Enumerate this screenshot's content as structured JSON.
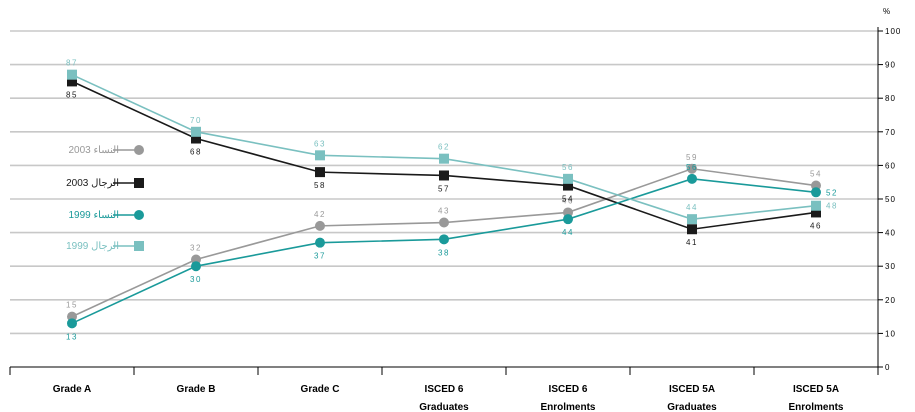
{
  "chart_data": {
    "type": "line",
    "categories": [
      [
        "Grade A"
      ],
      [
        "Grade B"
      ],
      [
        "Grade C"
      ],
      [
        "ISCED 6",
        "Graduates"
      ],
      [
        "ISCED 6",
        "Enrolments"
      ],
      [
        "ISCED 5A",
        "Graduates"
      ],
      [
        "ISCED 5A",
        "Enrolments"
      ]
    ],
    "ylabel": "%",
    "ylim": [
      0,
      100
    ],
    "yticks": [
      0,
      10,
      20,
      30,
      40,
      50,
      60,
      70,
      80,
      90,
      100
    ],
    "grid": true,
    "legend_position": "left",
    "series": [
      {
        "name": "النساء 2003",
        "color": "#999999",
        "marker": "circle",
        "values": [
          15,
          32,
          42,
          43,
          46,
          59,
          54
        ],
        "labels": [
          "15",
          "32",
          "42",
          "43",
          "46",
          "59",
          "54"
        ]
      },
      {
        "name": "الرجال 2003",
        "color": "#1a1a1a",
        "marker": "square",
        "values": [
          85,
          68,
          58,
          57,
          54,
          41,
          46
        ],
        "labels": [
          "85",
          "68",
          "58",
          "57",
          "54",
          "41",
          "46"
        ]
      },
      {
        "name": "النساء 1999",
        "color": "#1a9a9a",
        "marker": "circle",
        "values": [
          13,
          30,
          37,
          38,
          44,
          56,
          52
        ],
        "labels": [
          "13",
          "30",
          "37",
          "38",
          "44",
          "56",
          "52"
        ]
      },
      {
        "name": "الرجال 1999",
        "color": "#7ac0c0",
        "marker": "square",
        "values": [
          87,
          70,
          63,
          62,
          56,
          44,
          48
        ],
        "labels": [
          "87",
          "70",
          "63",
          "62",
          "56",
          "44",
          "48"
        ]
      }
    ]
  }
}
